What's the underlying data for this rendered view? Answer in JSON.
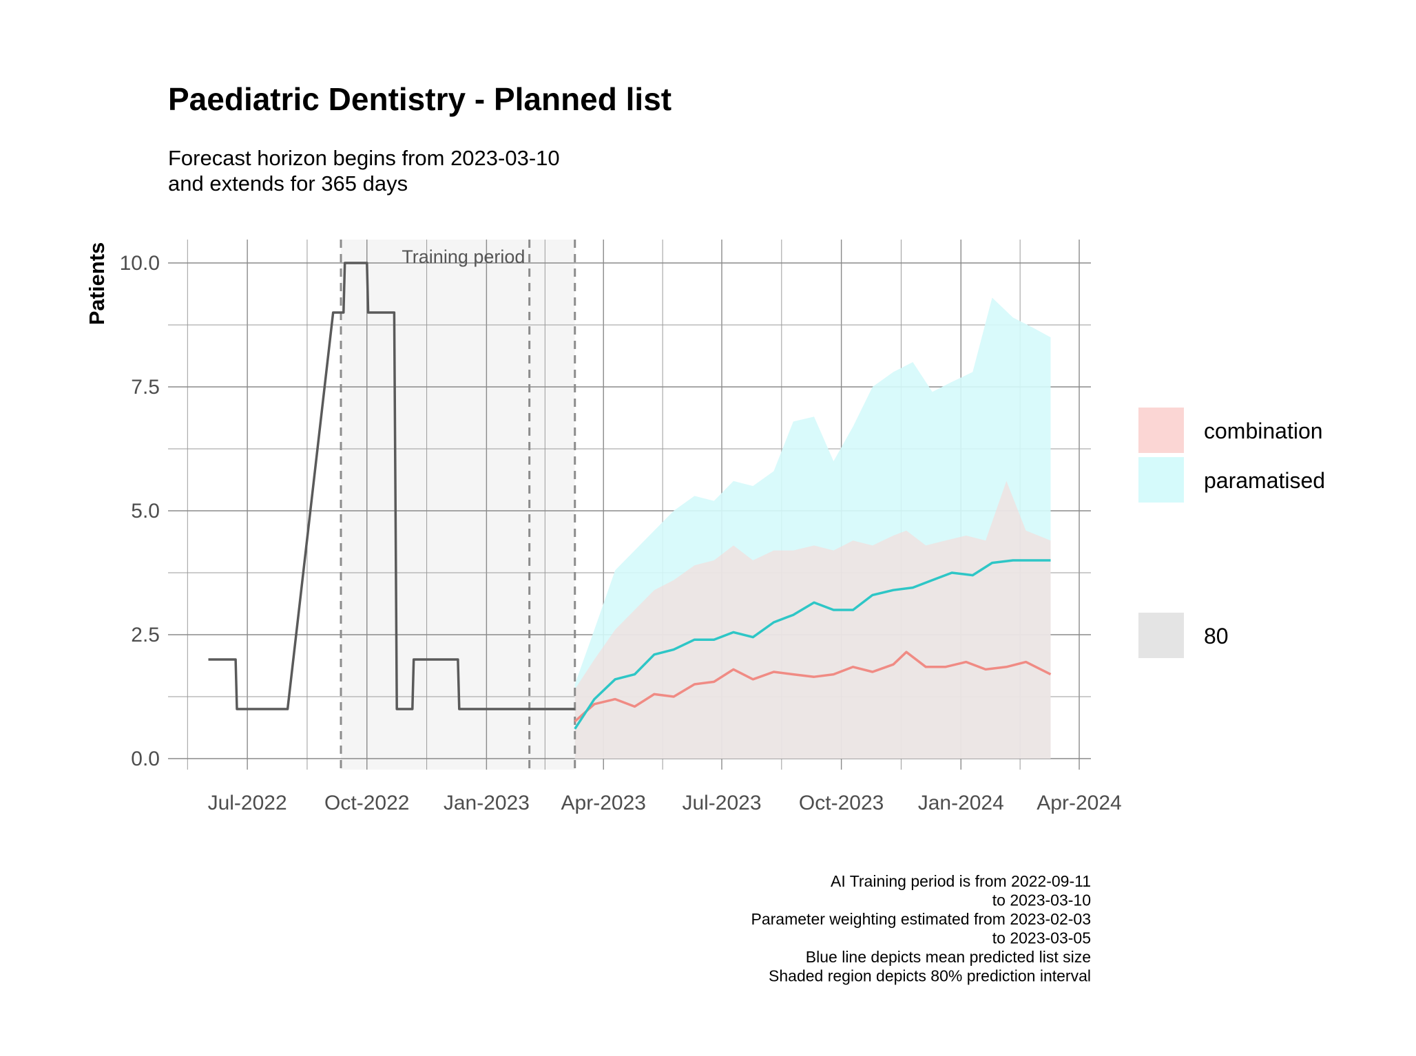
{
  "chart_data": {
    "type": "line",
    "title": "Paediatric Dentistry - Planned list",
    "subtitle_lines": [
      "Forecast horizon begins from 2023-03-10",
      "and extends for 365 days"
    ],
    "ylabel": "Patients",
    "xlabel": "",
    "ylim": [
      0,
      10
    ],
    "y_ticks": [
      "0.0",
      "2.5",
      "5.0",
      "7.5",
      "10.0"
    ],
    "x_ticks": [
      {
        "date": "2022-07-01",
        "label": "Jul-2022"
      },
      {
        "date": "2022-10-01",
        "label": "Oct-2022"
      },
      {
        "date": "2023-01-01",
        "label": "Jan-2023"
      },
      {
        "date": "2023-04-01",
        "label": "Apr-2023"
      },
      {
        "date": "2023-07-01",
        "label": "Jul-2023"
      },
      {
        "date": "2023-10-01",
        "label": "Oct-2023"
      },
      {
        "date": "2024-01-01",
        "label": "Jan-2024"
      },
      {
        "date": "2024-04-01",
        "label": "Apr-2024"
      }
    ],
    "x_range": [
      "2022-05-01",
      "2024-04-10"
    ],
    "grid": true,
    "training_period": {
      "label": "Training period",
      "start": "2022-09-11",
      "end": "2023-03-10"
    },
    "vlines": [
      "2022-09-11",
      "2023-02-03",
      "2023-03-10"
    ],
    "history": {
      "color": "#5a5a5a",
      "points": [
        [
          "2022-06-01",
          2
        ],
        [
          "2022-06-22",
          2
        ],
        [
          "2022-06-23",
          1
        ],
        [
          "2022-08-01",
          1
        ],
        [
          "2022-09-05",
          9
        ],
        [
          "2022-09-13",
          9
        ],
        [
          "2022-09-14",
          10
        ],
        [
          "2022-10-01",
          10
        ],
        [
          "2022-10-02",
          9
        ],
        [
          "2022-10-22",
          9
        ],
        [
          "2022-10-24",
          1
        ],
        [
          "2022-11-05",
          1
        ],
        [
          "2022-11-06",
          2
        ],
        [
          "2022-12-10",
          2
        ],
        [
          "2022-12-11",
          1
        ],
        [
          "2023-03-10",
          1
        ]
      ]
    },
    "series": [
      {
        "name": "combination",
        "color": "#f08b84",
        "fill": "#fbd6d4",
        "mean": [
          [
            "2023-03-10",
            0.75
          ],
          [
            "2023-03-25",
            1.1
          ],
          [
            "2023-04-10",
            1.2
          ],
          [
            "2023-04-25",
            1.05
          ],
          [
            "2023-05-10",
            1.3
          ],
          [
            "2023-05-25",
            1.25
          ],
          [
            "2023-06-10",
            1.5
          ],
          [
            "2023-06-25",
            1.55
          ],
          [
            "2023-07-10",
            1.8
          ],
          [
            "2023-07-25",
            1.6
          ],
          [
            "2023-08-10",
            1.75
          ],
          [
            "2023-08-25",
            1.7
          ],
          [
            "2023-09-10",
            1.65
          ],
          [
            "2023-09-25",
            1.7
          ],
          [
            "2023-10-10",
            1.85
          ],
          [
            "2023-10-25",
            1.75
          ],
          [
            "2023-11-10",
            1.9
          ],
          [
            "2023-11-20",
            2.15
          ],
          [
            "2023-12-05",
            1.85
          ],
          [
            "2023-12-20",
            1.85
          ],
          [
            "2024-01-05",
            1.95
          ],
          [
            "2024-01-20",
            1.8
          ],
          [
            "2024-02-05",
            1.85
          ],
          [
            "2024-02-20",
            1.95
          ],
          [
            "2024-03-10",
            1.7
          ]
        ],
        "upper": [
          [
            "2023-03-10",
            1.4
          ],
          [
            "2023-03-25",
            2.0
          ],
          [
            "2023-04-10",
            2.6
          ],
          [
            "2023-04-25",
            3.0
          ],
          [
            "2023-05-10",
            3.4
          ],
          [
            "2023-05-25",
            3.6
          ],
          [
            "2023-06-10",
            3.9
          ],
          [
            "2023-06-25",
            4.0
          ],
          [
            "2023-07-10",
            4.3
          ],
          [
            "2023-07-25",
            4.0
          ],
          [
            "2023-08-10",
            4.2
          ],
          [
            "2023-08-25",
            4.2
          ],
          [
            "2023-09-10",
            4.3
          ],
          [
            "2023-09-25",
            4.2
          ],
          [
            "2023-10-10",
            4.4
          ],
          [
            "2023-10-25",
            4.3
          ],
          [
            "2023-11-10",
            4.5
          ],
          [
            "2023-11-20",
            4.6
          ],
          [
            "2023-12-05",
            4.3
          ],
          [
            "2023-12-20",
            4.4
          ],
          [
            "2024-01-05",
            4.5
          ],
          [
            "2024-01-20",
            4.4
          ],
          [
            "2024-02-05",
            5.6
          ],
          [
            "2024-02-20",
            4.6
          ],
          [
            "2024-03-10",
            4.4
          ]
        ],
        "lower": 0
      },
      {
        "name": "paramatised",
        "color": "#2ec6c6",
        "fill": "#d5fafb",
        "mean": [
          [
            "2023-03-10",
            0.6
          ],
          [
            "2023-03-25",
            1.2
          ],
          [
            "2023-04-10",
            1.6
          ],
          [
            "2023-04-25",
            1.7
          ],
          [
            "2023-05-10",
            2.1
          ],
          [
            "2023-05-25",
            2.2
          ],
          [
            "2023-06-10",
            2.4
          ],
          [
            "2023-06-25",
            2.4
          ],
          [
            "2023-07-10",
            2.55
          ],
          [
            "2023-07-25",
            2.45
          ],
          [
            "2023-08-10",
            2.75
          ],
          [
            "2023-08-25",
            2.9
          ],
          [
            "2023-09-10",
            3.15
          ],
          [
            "2023-09-25",
            3.0
          ],
          [
            "2023-10-10",
            3.0
          ],
          [
            "2023-10-25",
            3.3
          ],
          [
            "2023-11-10",
            3.4
          ],
          [
            "2023-11-25",
            3.45
          ],
          [
            "2023-12-10",
            3.6
          ],
          [
            "2023-12-25",
            3.75
          ],
          [
            "2024-01-10",
            3.7
          ],
          [
            "2024-01-25",
            3.95
          ],
          [
            "2024-02-10",
            4.0
          ],
          [
            "2024-02-25",
            4.0
          ],
          [
            "2024-03-10",
            4.0
          ]
        ],
        "upper": [
          [
            "2023-03-10",
            1.5
          ],
          [
            "2023-03-25",
            2.6
          ],
          [
            "2023-04-10",
            3.8
          ],
          [
            "2023-04-25",
            4.2
          ],
          [
            "2023-05-10",
            4.6
          ],
          [
            "2023-05-25",
            5.0
          ],
          [
            "2023-06-10",
            5.3
          ],
          [
            "2023-06-25",
            5.2
          ],
          [
            "2023-07-10",
            5.6
          ],
          [
            "2023-07-25",
            5.5
          ],
          [
            "2023-08-10",
            5.8
          ],
          [
            "2023-08-25",
            6.8
          ],
          [
            "2023-09-10",
            6.9
          ],
          [
            "2023-09-25",
            6.0
          ],
          [
            "2023-10-10",
            6.7
          ],
          [
            "2023-10-25",
            7.5
          ],
          [
            "2023-11-10",
            7.8
          ],
          [
            "2023-11-25",
            8.0
          ],
          [
            "2023-12-10",
            7.4
          ],
          [
            "2023-12-25",
            7.6
          ],
          [
            "2024-01-10",
            7.8
          ],
          [
            "2024-01-25",
            9.3
          ],
          [
            "2024-02-10",
            8.9
          ],
          [
            "2024-02-25",
            8.7
          ],
          [
            "2024-03-10",
            8.5
          ]
        ],
        "lower": 0
      }
    ],
    "legend": {
      "placement": "right",
      "fill_items": [
        {
          "label": "combination",
          "color": "#fbd6d4"
        },
        {
          "label": "paramatised",
          "color": "#d5fafb"
        }
      ],
      "interval_item": {
        "label": "80",
        "color": "#e4e4e4"
      }
    },
    "caption_lines": [
      "AI Training period is from 2022-09-11",
      "to 2023-03-10",
      "Parameter weighting estimated from 2023-02-03",
      "to 2023-03-05",
      "Blue line depicts mean predicted list size",
      "Shaded region depicts 80% prediction interval"
    ]
  }
}
